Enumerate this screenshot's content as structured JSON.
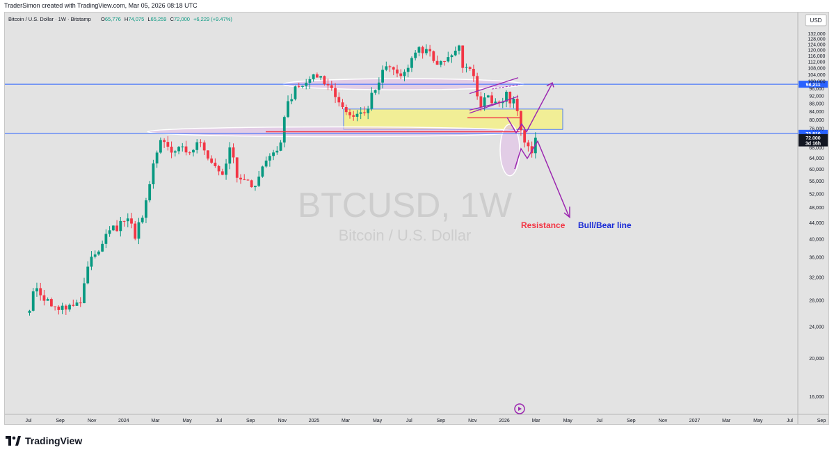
{
  "header": {
    "created_by": "TraderSimon created with TradingView.com, Mar 05, 2026 08:18 UTC"
  },
  "legend": {
    "symbol": "Bitcoin / U.S. Dollar · 1W · Bitstamp",
    "o_label": "O",
    "o_value": "65,776",
    "h_label": "H",
    "h_value": "74,075",
    "l_label": "L",
    "l_value": "65,259",
    "c_label": "C",
    "c_value": "72,000",
    "change": "+6,229 (+9.47%)"
  },
  "watermark": {
    "ticker": "BTCUSD, 1W",
    "name": "Bitcoin / U.S. Dollar"
  },
  "currency_button": "USD",
  "footer": {
    "brand": "TradingView"
  },
  "colors": {
    "up": "#089981",
    "down": "#f23645",
    "hline": "#2962ff",
    "annotation": "#9c27b0",
    "zone": "#f5f17c",
    "ellipse": "#e1bee7",
    "resistance": "#f23645",
    "bullbear": "#1a2bd6"
  },
  "chart_data": {
    "type": "candlestick",
    "x_unit": "weekly bars",
    "y_scale": "log",
    "y_range": [
      15000,
      138000
    ],
    "y_ticks": [
      132000,
      128000,
      124000,
      120000,
      116000,
      112000,
      108000,
      104000,
      100000,
      96000,
      92000,
      88000,
      84000,
      80000,
      76000,
      68000,
      64000,
      60000,
      56000,
      52000,
      48000,
      44000,
      40000,
      36000,
      32000,
      28000,
      24000,
      20000,
      16000
    ],
    "x_ticks": [
      "Jul",
      "Sep",
      "Nov",
      "2024",
      "Mar",
      "May",
      "Jul",
      "Sep",
      "Nov",
      "2025",
      "Mar",
      "May",
      "Jul",
      "Sep",
      "Nov",
      "2026",
      "Mar",
      "May",
      "Jul",
      "Sep",
      "Nov",
      "2027",
      "Mar",
      "May",
      "Jul",
      "Sep"
    ],
    "price_labels": [
      {
        "text": "98,211",
        "value": 98211,
        "style": "blue"
      },
      {
        "text": "73,810",
        "value": 73810,
        "style": "blue"
      },
      {
        "text": "72,000",
        "value": 72000,
        "style": "green"
      },
      {
        "text": "3d 16h",
        "value": 69800,
        "style": "dark"
      }
    ],
    "horizontal_lines": [
      98211,
      73810
    ],
    "annotations": {
      "resistance_label": "Resistance",
      "bullbear_label": "Bull/Bear line"
    },
    "anchors": [
      [
        "2023-06-26",
        26000
      ],
      [
        "2023-07-17",
        30000
      ],
      [
        "2023-08-14",
        27000
      ],
      [
        "2023-09-11",
        26500
      ],
      [
        "2023-10-09",
        27500
      ],
      [
        "2023-10-23",
        34000
      ],
      [
        "2023-11-06",
        36500
      ],
      [
        "2023-12-04",
        42000
      ],
      [
        "2024-01-08",
        45000
      ],
      [
        "2024-01-22",
        40000
      ],
      [
        "2024-02-12",
        50000
      ],
      [
        "2024-03-04",
        66000
      ],
      [
        "2024-03-11",
        71000
      ],
      [
        "2024-04-01",
        66000
      ],
      [
        "2024-05-13",
        67000
      ],
      [
        "2024-05-27",
        70000
      ],
      [
        "2024-06-24",
        61000
      ],
      [
        "2024-07-08",
        58000
      ],
      [
        "2024-07-22",
        68000
      ],
      [
        "2024-08-05",
        57000
      ],
      [
        "2024-09-02",
        54000
      ],
      [
        "2024-09-30",
        63000
      ],
      [
        "2024-10-28",
        70000
      ],
      [
        "2024-11-11",
        89000
      ],
      [
        "2024-11-25",
        97000
      ],
      [
        "2024-12-16",
        99000
      ],
      [
        "2025-01-13",
        103000
      ],
      [
        "2025-02-03",
        96000
      ],
      [
        "2025-02-24",
        86000
      ],
      [
        "2025-03-10",
        82000
      ],
      [
        "2025-04-07",
        83000
      ],
      [
        "2025-04-28",
        95000
      ],
      [
        "2025-05-19",
        109000
      ],
      [
        "2025-06-16",
        103000
      ],
      [
        "2025-06-30",
        108000
      ],
      [
        "2025-07-14",
        118000
      ],
      [
        "2025-08-11",
        119000
      ],
      [
        "2025-08-25",
        110000
      ],
      [
        "2025-09-15",
        115000
      ],
      [
        "2025-10-06",
        123000
      ],
      [
        "2025-10-13",
        108000
      ],
      [
        "2025-11-03",
        103000
      ],
      [
        "2025-11-17",
        86000
      ],
      [
        "2025-12-01",
        92000
      ],
      [
        "2025-12-22",
        88000
      ],
      [
        "2026-01-05",
        94000
      ],
      [
        "2026-01-26",
        84000
      ],
      [
        "2026-02-09",
        70000
      ],
      [
        "2026-02-23",
        65776
      ],
      [
        "2026-03-02",
        72000
      ]
    ]
  }
}
